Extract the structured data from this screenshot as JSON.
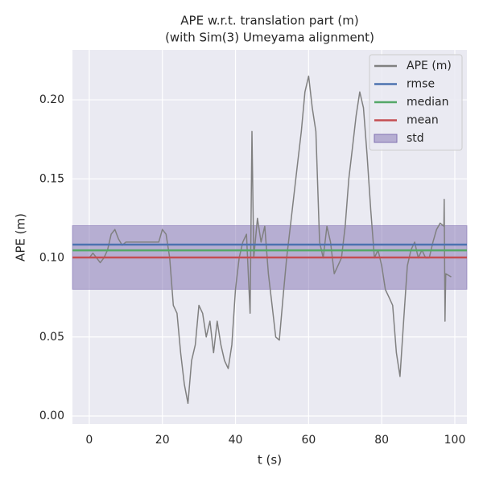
{
  "chart_data": {
    "type": "line",
    "title": "APE w.r.t. translation part (m)",
    "subtitle": "(with Sim(3) Umeyama alignment)",
    "xlabel": "t (s)",
    "ylabel": "APE (m)",
    "xlim": [
      -4.6,
      103.3
    ],
    "ylim": [
      -0.0051,
      0.2316
    ],
    "xticks": [
      0,
      20,
      40,
      60,
      80,
      100
    ],
    "yticks": [
      {
        "value": 0,
        "label": "0.00"
      },
      {
        "value": 0.05,
        "label": "0.05"
      },
      {
        "value": 0.1,
        "label": "0.10"
      },
      {
        "value": 0.15,
        "label": "0.15"
      },
      {
        "value": 0.2,
        "label": "0.20"
      }
    ],
    "grid": true,
    "legend": "upper right",
    "series": [
      {
        "name": "APE (m)",
        "color": "#808080",
        "x": [
          0,
          1,
          2,
          3,
          4,
          5,
          6,
          7,
          8,
          9,
          10,
          15,
          19,
          20,
          21,
          22,
          23,
          24,
          25,
          26,
          27,
          28,
          29,
          30,
          31,
          32,
          33,
          34,
          35,
          36,
          37,
          38,
          39,
          40,
          41,
          42,
          43,
          44,
          44.5,
          45,
          46,
          47,
          48,
          49,
          50,
          51,
          52,
          53,
          54,
          55,
          56,
          57,
          58,
          59,
          60,
          61,
          62,
          63,
          64,
          65,
          66,
          67,
          68,
          69,
          70,
          71,
          72,
          73,
          74,
          75,
          76,
          77,
          78,
          79,
          80,
          81,
          82,
          83,
          84,
          85,
          86,
          87,
          88,
          89,
          90,
          91,
          92,
          93,
          94,
          95,
          96,
          97,
          97.1,
          97.3,
          97.5,
          99
        ],
        "values": [
          0.1,
          0.103,
          0.1,
          0.097,
          0.1,
          0.105,
          0.115,
          0.118,
          0.112,
          0.108,
          0.11,
          0.11,
          0.11,
          0.118,
          0.115,
          0.1,
          0.07,
          0.065,
          0.04,
          0.02,
          0.008,
          0.035,
          0.045,
          0.07,
          0.065,
          0.05,
          0.06,
          0.04,
          0.06,
          0.045,
          0.035,
          0.03,
          0.045,
          0.08,
          0.1,
          0.11,
          0.115,
          0.065,
          0.18,
          0.1,
          0.125,
          0.11,
          0.12,
          0.09,
          0.07,
          0.05,
          0.048,
          0.075,
          0.1,
          0.12,
          0.14,
          0.16,
          0.18,
          0.205,
          0.215,
          0.195,
          0.18,
          0.11,
          0.1,
          0.12,
          0.11,
          0.09,
          0.095,
          0.1,
          0.12,
          0.15,
          0.17,
          0.19,
          0.205,
          0.195,
          0.165,
          0.13,
          0.1,
          0.105,
          0.095,
          0.08,
          0.075,
          0.07,
          0.04,
          0.025,
          0.06,
          0.095,
          0.105,
          0.11,
          0.1,
          0.105,
          0.1,
          0.1,
          0.11,
          0.118,
          0.122,
          0.12,
          0.137,
          0.06,
          0.09,
          0.088
        ]
      }
    ],
    "stats": [
      {
        "name": "rmse",
        "color": "#4c72b0",
        "value": 0.1084
      },
      {
        "name": "median",
        "color": "#55a868",
        "value": 0.1048
      },
      {
        "name": "mean",
        "color": "#c44e52",
        "value": 0.1003
      },
      {
        "name": "std",
        "color": "#8172b2",
        "value": 0.0201
      }
    ]
  }
}
